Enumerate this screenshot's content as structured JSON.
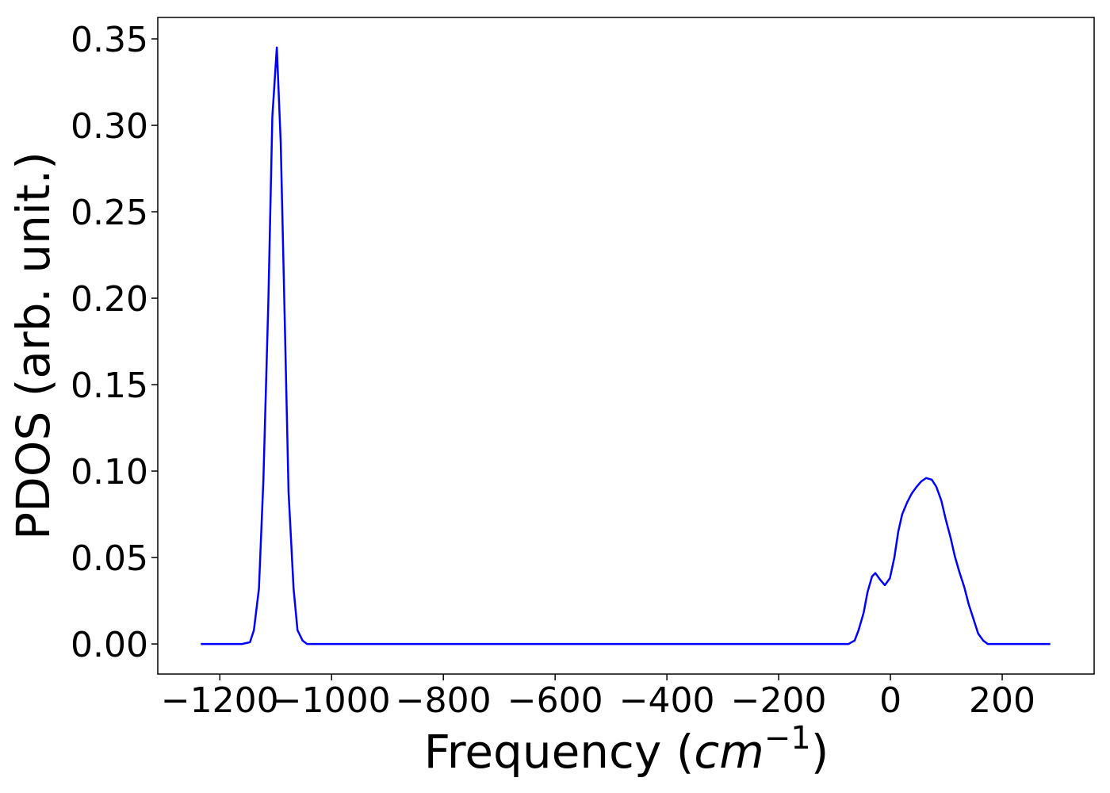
{
  "chart_data": {
    "type": "line",
    "x_label": [
      "Frequency (",
      "cm",
      "−1",
      ")"
    ],
    "y_label": "PDOS (arb. unit.)",
    "x": [
      -1234,
      -1160,
      -1146,
      -1139,
      -1130,
      -1122,
      -1113,
      -1106,
      -1098,
      -1091,
      -1084,
      -1077,
      -1068,
      -1061,
      -1052,
      -1044,
      -75,
      -64,
      -57,
      -48,
      -41,
      -33,
      -27,
      -18,
      -10,
      -1,
      7,
      14,
      21,
      30,
      38,
      47,
      55,
      64,
      74,
      82,
      91,
      99,
      108,
      115,
      123,
      132,
      140,
      149,
      157,
      166,
      174,
      183,
      286
    ],
    "series": [
      {
        "color": "#0000ff",
        "values": [
          0,
          0,
          0.001,
          0.008,
          0.032,
          0.095,
          0.2,
          0.305,
          0.345,
          0.29,
          0.19,
          0.088,
          0.032,
          0.008,
          0.002,
          0,
          0,
          0.002,
          0.008,
          0.018,
          0.03,
          0.039,
          0.041,
          0.037,
          0.034,
          0.038,
          0.05,
          0.065,
          0.075,
          0.082,
          0.087,
          0.091,
          0.094,
          0.096,
          0.095,
          0.091,
          0.083,
          0.072,
          0.061,
          0.051,
          0.042,
          0.033,
          0.023,
          0.014,
          0.006,
          0.002,
          0,
          0,
          0
        ]
      }
    ],
    "xlim": [
      -1311,
      364.5
    ],
    "ylim": [
      -0.0174,
      0.3624
    ],
    "xticks": [
      {
        "value": -1200,
        "label": "−1200"
      },
      {
        "value": -1000,
        "label": "−1000"
      },
      {
        "value": -800,
        "label": "−800"
      },
      {
        "value": -600,
        "label": "−600"
      },
      {
        "value": -400,
        "label": "−400"
      },
      {
        "value": -200,
        "label": "−200"
      },
      0,
      200
    ],
    "yticks": [
      {
        "value": 0,
        "label": "0.00"
      },
      {
        "value": 0.05,
        "label": "0.05"
      },
      {
        "value": 0.1,
        "label": "0.10"
      },
      {
        "value": 0.15,
        "label": "0.15"
      },
      {
        "value": 0.2,
        "label": "0.20"
      },
      {
        "value": 0.25,
        "label": "0.25"
      },
      {
        "value": 0.3,
        "label": "0.30"
      },
      {
        "value": 0.35,
        "label": "0.35"
      }
    ]
  }
}
